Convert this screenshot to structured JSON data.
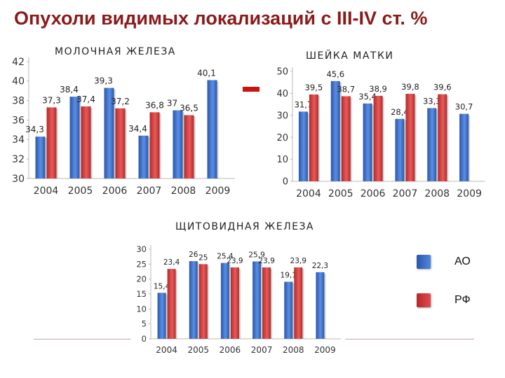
{
  "slide": {
    "title": "Опухоли видимых локализаций  с III-IV ст. %"
  },
  "colors": {
    "ao": "#3a6ccb",
    "rf": "#d63a3a"
  },
  "legend": {
    "ao": "АО",
    "rf": "РФ"
  },
  "chart_data": [
    {
      "type": "bar",
      "title": "МОЛОЧНАЯ ЖЕЛЕЗА",
      "categories": [
        "2004",
        "2005",
        "2006",
        "2007",
        "2008",
        "2009"
      ],
      "series": [
        {
          "name": "АО",
          "values": [
            34.3,
            38.4,
            39.3,
            34.4,
            37.0,
            40.1
          ],
          "labels": [
            "34,3",
            "38,4",
            "39,3",
            "34,4",
            "37",
            "40,1"
          ]
        },
        {
          "name": "РФ",
          "values": [
            37.3,
            37.4,
            37.2,
            36.8,
            36.5,
            null
          ],
          "labels": [
            "37,3",
            "37,4",
            "37,2",
            "36,8",
            "36,5",
            ""
          ]
        }
      ],
      "ylim": [
        30,
        42
      ],
      "yticks": [
        30,
        32,
        34,
        36,
        38,
        40,
        42
      ],
      "grid": false
    },
    {
      "type": "bar",
      "title": "ШЕЙКА МАТКИ",
      "categories": [
        "2004",
        "2005",
        "2006",
        "2007",
        "2008",
        "2009"
      ],
      "series": [
        {
          "name": "АО",
          "values": [
            31.7,
            45.6,
            35.4,
            28.4,
            33.3,
            30.7
          ],
          "labels": [
            "31,7",
            "45,6",
            "35,4",
            "28,4",
            "33,3",
            "30,7"
          ]
        },
        {
          "name": "РФ",
          "values": [
            39.5,
            38.7,
            38.9,
            39.8,
            39.6,
            null
          ],
          "labels": [
            "39,5",
            "38,7",
            "38,9",
            "39,8",
            "39,6",
            ""
          ]
        }
      ],
      "ylim": [
        0,
        50
      ],
      "yticks": [
        0,
        10,
        20,
        30,
        40,
        50
      ],
      "grid": false
    },
    {
      "type": "bar",
      "title": "ЩИТОВИДНАЯ ЖЕЛЕЗА",
      "categories": [
        "2004",
        "2005",
        "2006",
        "2007",
        "2008",
        "2009"
      ],
      "series": [
        {
          "name": "АО",
          "values": [
            15.4,
            26.0,
            25.4,
            25.9,
            19.1,
            22.3
          ],
          "labels": [
            "15,4",
            "26",
            "25,4",
            "25,9",
            "19,1",
            "22,3"
          ]
        },
        {
          "name": "РФ",
          "values": [
            23.4,
            25.0,
            23.9,
            23.9,
            23.9,
            null
          ],
          "labels": [
            "23,4",
            "25",
            "23,9",
            "23,9",
            "23,9",
            ""
          ]
        }
      ],
      "ylim": [
        0,
        30
      ],
      "yticks": [
        0,
        5,
        10,
        15,
        20,
        25,
        30
      ],
      "grid": false
    }
  ]
}
